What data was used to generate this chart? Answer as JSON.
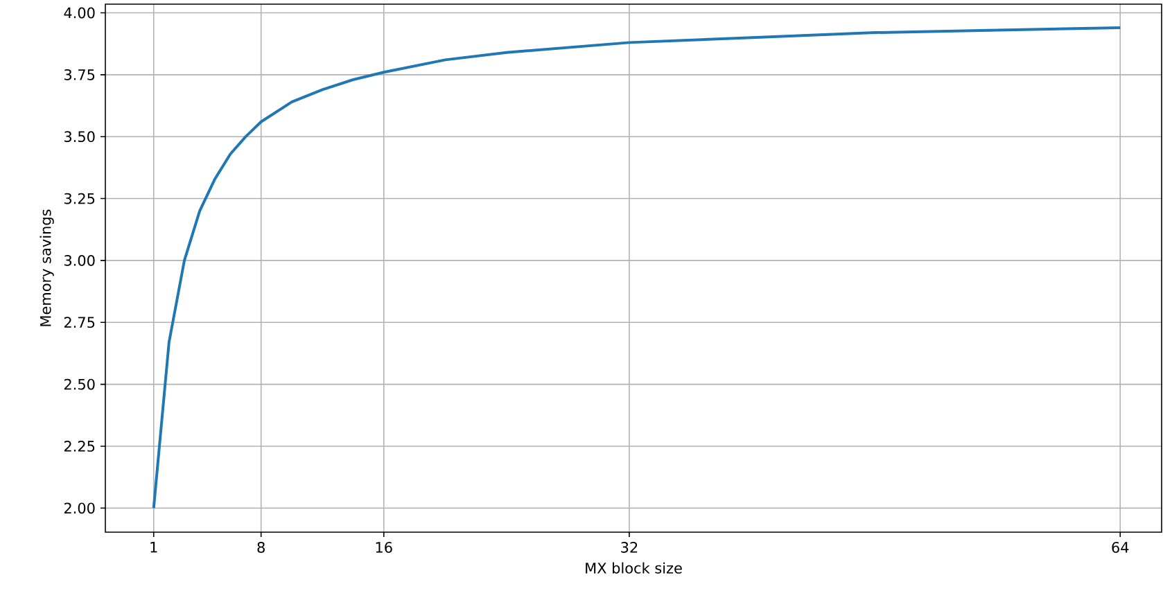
{
  "chart_data": {
    "type": "line",
    "xlabel": "MX block size",
    "ylabel": "Memory savings",
    "x": [
      1,
      2,
      3,
      4,
      5,
      6,
      7,
      8,
      10,
      12,
      14,
      16,
      20,
      24,
      28,
      32,
      40,
      48,
      56,
      64
    ],
    "series": [
      {
        "color": "#1f77b4",
        "values": [
          2.0,
          2.67,
          3.0,
          3.2,
          3.33,
          3.43,
          3.5,
          3.56,
          3.64,
          3.69,
          3.73,
          3.76,
          3.81,
          3.84,
          3.86,
          3.88,
          3.9,
          3.92,
          3.93,
          3.94
        ]
      }
    ],
    "xlim": [
      -2.15,
      66.7
    ],
    "ylim": [
      1.903,
      4.035
    ],
    "xticks": [
      1,
      8,
      16,
      32,
      64
    ],
    "yticks": [
      {
        "value": 2.0,
        "label": "2.00"
      },
      {
        "value": 2.25,
        "label": "2.25"
      },
      {
        "value": 2.5,
        "label": "2.50"
      },
      {
        "value": 2.75,
        "label": "2.75"
      },
      {
        "value": 3.0,
        "label": "3.00"
      },
      {
        "value": 3.25,
        "label": "3.25"
      },
      {
        "value": 3.5,
        "label": "3.50"
      },
      {
        "value": 3.75,
        "label": "3.75"
      },
      {
        "value": 4.0,
        "label": "4.00"
      }
    ],
    "grid": true,
    "line_style": "solid",
    "marker": "none"
  }
}
